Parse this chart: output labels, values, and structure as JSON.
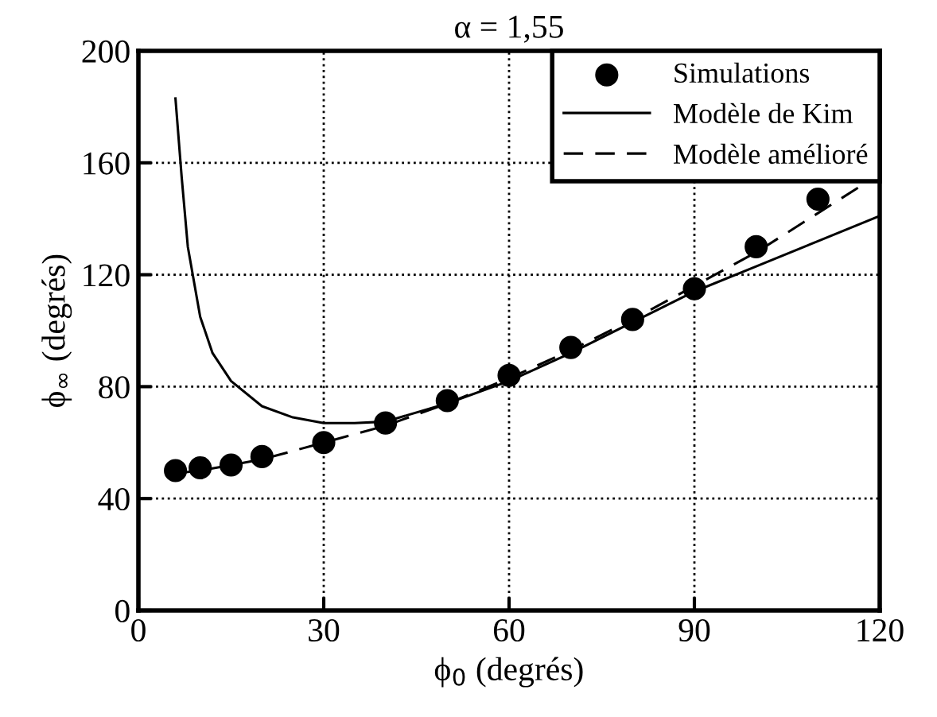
{
  "chart_data": {
    "type": "line",
    "title": "α = 1,55",
    "xlabel": "ϕ$_{0}$ (degrés)",
    "ylabel": "ϕ$_{∞}$ (degrés)",
    "xlim": [
      0,
      120
    ],
    "xticks": [
      0,
      30,
      60,
      90,
      120
    ],
    "ylim": [
      0,
      200
    ],
    "yticks": [
      0,
      40,
      80,
      120,
      160,
      200
    ],
    "grid": true,
    "legend": "top right",
    "series": [
      {
        "name": "Simulations",
        "type": "scatter",
        "marker": "circle",
        "color": "#000000",
        "x": [
          6,
          10,
          15,
          20,
          30,
          40,
          50,
          60,
          70,
          80,
          90,
          100,
          110
        ],
        "values": [
          50,
          51,
          52,
          55,
          60,
          67,
          75,
          84,
          94,
          104,
          115,
          130,
          147
        ]
      },
      {
        "name": "Modèle de Kim",
        "line_style": "solid",
        "color": "#000000",
        "x": [
          6,
          7,
          8,
          10,
          12,
          15,
          20,
          25,
          30,
          35,
          40,
          50,
          60,
          70,
          80,
          90,
          100,
          110,
          120
        ],
        "values": [
          183,
          155,
          130,
          105,
          92,
          82,
          73,
          69,
          67,
          67,
          67.5,
          74,
          82,
          92,
          103,
          114,
          123,
          132,
          141
        ]
      },
      {
        "name": "Modèle amélioré",
        "type": "line",
        "line_style": "dashed",
        "color": "#000000",
        "x": [
          6,
          10,
          20,
          30,
          40,
          50,
          60,
          70,
          80,
          90,
          100,
          110,
          120
        ],
        "values": [
          49,
          50,
          54,
          60,
          66,
          74,
          83,
          93,
          104,
          116,
          128,
          142,
          156
        ]
      }
    ]
  }
}
